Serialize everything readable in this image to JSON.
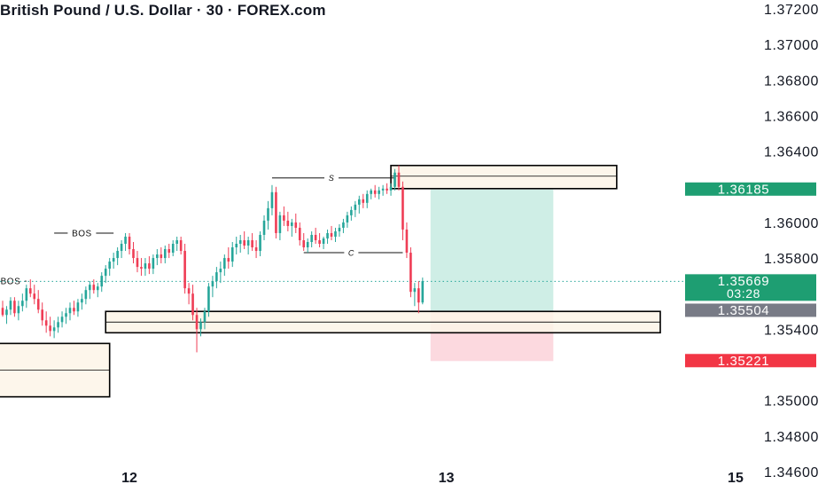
{
  "header": {
    "title": "British Pound / U.S. Dollar · 30 · FOREX.com"
  },
  "colors": {
    "up": "#26a69a",
    "down": "#ef3d55",
    "zone_fill": "#fdf5e8",
    "take_profit": "#cfeee6",
    "stop_loss": "#fcd9df",
    "last_price_line": "#26a69a",
    "axis_text": "#131722",
    "badge_green": "#1e9e72",
    "badge_gray": "#787b86",
    "badge_red": "#f23645"
  },
  "chart_data": {
    "type": "candlestick",
    "symbol": "British Pound / U.S. Dollar",
    "interval": "30",
    "source": "FOREX.com",
    "ylim": [
      1.3451,
      1.3725
    ],
    "y_ticks": [
      "1.37200",
      "1.37000",
      "1.36800",
      "1.36600",
      "1.36400",
      "1.36000",
      "1.35800",
      "1.35400",
      "1.35000",
      "1.34800",
      "1.34600"
    ],
    "x_ticks": [
      {
        "label": "12",
        "bar": 32
      },
      {
        "label": "13",
        "bar": 112
      },
      {
        "label": "15",
        "bar": 185
      }
    ],
    "candles": [
      [
        1.3552,
        1.3556,
        1.3547,
        1.3548
      ],
      [
        1.3548,
        1.3553,
        1.3543,
        1.3551
      ],
      [
        1.3551,
        1.3558,
        1.3548,
        1.3556
      ],
      [
        1.3556,
        1.3558,
        1.3547,
        1.3549
      ],
      [
        1.3549,
        1.3556,
        1.3545,
        1.3553
      ],
      [
        1.3553,
        1.356,
        1.355,
        1.3556
      ],
      [
        1.3556,
        1.3565,
        1.3552,
        1.3563
      ],
      [
        1.3563,
        1.3568,
        1.3558,
        1.356
      ],
      [
        1.356,
        1.3565,
        1.3554,
        1.3557
      ],
      [
        1.3557,
        1.3562,
        1.3549,
        1.3551
      ],
      [
        1.3551,
        1.3555,
        1.3542,
        1.3545
      ],
      [
        1.3545,
        1.355,
        1.3538,
        1.3542
      ],
      [
        1.3542,
        1.3547,
        1.3536,
        1.3539
      ],
      [
        1.3539,
        1.3545,
        1.3535,
        1.3541
      ],
      [
        1.3541,
        1.3547,
        1.3538,
        1.3544
      ],
      [
        1.3544,
        1.355,
        1.3541,
        1.3547
      ],
      [
        1.3547,
        1.3552,
        1.3543,
        1.3549
      ],
      [
        1.3549,
        1.3555,
        1.3545,
        1.3552
      ],
      [
        1.3552,
        1.3556,
        1.3548,
        1.355
      ],
      [
        1.355,
        1.3557,
        1.3547,
        1.3555
      ],
      [
        1.3555,
        1.356,
        1.3551,
        1.3557
      ],
      [
        1.3557,
        1.3564,
        1.3554,
        1.3562
      ],
      [
        1.3562,
        1.3567,
        1.3557,
        1.3565
      ],
      [
        1.3565,
        1.3568,
        1.356,
        1.3562
      ],
      [
        1.3562,
        1.3566,
        1.3558,
        1.3564
      ],
      [
        1.3564,
        1.3572,
        1.3561,
        1.357
      ],
      [
        1.357,
        1.3576,
        1.3566,
        1.3574
      ],
      [
        1.3574,
        1.358,
        1.357,
        1.3578
      ],
      [
        1.3578,
        1.3583,
        1.3574,
        1.358
      ],
      [
        1.358,
        1.3586,
        1.3576,
        1.3584
      ],
      [
        1.3584,
        1.359,
        1.358,
        1.3588
      ],
      [
        1.3588,
        1.3594,
        1.3584,
        1.3592
      ],
      [
        1.3592,
        1.3594,
        1.3582,
        1.3585
      ],
      [
        1.3585,
        1.3589,
        1.3577,
        1.358
      ],
      [
        1.358,
        1.3584,
        1.3572,
        1.3575
      ],
      [
        1.3575,
        1.358,
        1.357,
        1.3574
      ],
      [
        1.3574,
        1.358,
        1.357,
        1.3577
      ],
      [
        1.3577,
        1.3581,
        1.3571,
        1.3574
      ],
      [
        1.3574,
        1.3582,
        1.3571,
        1.358
      ],
      [
        1.358,
        1.3585,
        1.3576,
        1.3582
      ],
      [
        1.3582,
        1.3586,
        1.3577,
        1.358
      ],
      [
        1.358,
        1.3587,
        1.3577,
        1.3585
      ],
      [
        1.3585,
        1.3588,
        1.358,
        1.3583
      ],
      [
        1.3583,
        1.359,
        1.3581,
        1.3588
      ],
      [
        1.3588,
        1.3592,
        1.3584,
        1.359
      ],
      [
        1.359,
        1.3592,
        1.3582,
        1.3584
      ],
      [
        1.3584,
        1.3588,
        1.356,
        1.3563
      ],
      [
        1.3563,
        1.3566,
        1.3554,
        1.356
      ],
      [
        1.356,
        1.3565,
        1.3545,
        1.3548
      ],
      [
        1.3548,
        1.3552,
        1.3527,
        1.354
      ],
      [
        1.354,
        1.3546,
        1.3536,
        1.3544
      ],
      [
        1.3544,
        1.3552,
        1.354,
        1.355
      ],
      [
        1.355,
        1.3566,
        1.3547,
        1.3564
      ],
      [
        1.3564,
        1.357,
        1.3558,
        1.3567
      ],
      [
        1.3567,
        1.3575,
        1.3563,
        1.3572
      ],
      [
        1.3572,
        1.3578,
        1.3566,
        1.3574
      ],
      [
        1.3574,
        1.3582,
        1.357,
        1.358
      ],
      [
        1.358,
        1.3586,
        1.3574,
        1.3578
      ],
      [
        1.3578,
        1.3589,
        1.3575,
        1.3586
      ],
      [
        1.3586,
        1.3592,
        1.3582,
        1.3588
      ],
      [
        1.3588,
        1.3593,
        1.3583,
        1.359
      ],
      [
        1.359,
        1.3595,
        1.3585,
        1.3587
      ],
      [
        1.3587,
        1.3592,
        1.3582,
        1.359
      ],
      [
        1.359,
        1.3594,
        1.3584,
        1.3586
      ],
      [
        1.3586,
        1.359,
        1.358,
        1.3584
      ],
      [
        1.3584,
        1.3595,
        1.3581,
        1.3593
      ],
      [
        1.3593,
        1.3604,
        1.359,
        1.3601
      ],
      [
        1.3601,
        1.3612,
        1.3596,
        1.3608
      ],
      [
        1.3608,
        1.3621,
        1.3604,
        1.3617
      ],
      [
        1.3617,
        1.362,
        1.3591,
        1.3594
      ],
      [
        1.3594,
        1.3606,
        1.359,
        1.3604
      ],
      [
        1.3604,
        1.3609,
        1.3598,
        1.3601
      ],
      [
        1.3601,
        1.3606,
        1.3595,
        1.3598
      ],
      [
        1.3598,
        1.3602,
        1.3592,
        1.36
      ],
      [
        1.36,
        1.3605,
        1.3594,
        1.3597
      ],
      [
        1.3597,
        1.36,
        1.3587,
        1.359
      ],
      [
        1.359,
        1.3594,
        1.3584,
        1.3586
      ],
      [
        1.3586,
        1.3591,
        1.3583,
        1.3589
      ],
      [
        1.3589,
        1.3595,
        1.3586,
        1.3593
      ],
      [
        1.3593,
        1.3597,
        1.3588,
        1.359
      ],
      [
        1.359,
        1.3594,
        1.3586,
        1.3588
      ],
      [
        1.3588,
        1.3592,
        1.3585,
        1.3591
      ],
      [
        1.3591,
        1.3596,
        1.3588,
        1.3594
      ],
      [
        1.3594,
        1.3598,
        1.359,
        1.3592
      ],
      [
        1.3592,
        1.3597,
        1.3589,
        1.3595
      ],
      [
        1.3595,
        1.3599,
        1.3592,
        1.3597
      ],
      [
        1.3597,
        1.3602,
        1.3594,
        1.36
      ],
      [
        1.36,
        1.3606,
        1.3597,
        1.3604
      ],
      [
        1.3604,
        1.3609,
        1.3601,
        1.3607
      ],
      [
        1.3607,
        1.3612,
        1.3603,
        1.361
      ],
      [
        1.361,
        1.3615,
        1.3605,
        1.3613
      ],
      [
        1.3613,
        1.3616,
        1.3608,
        1.3611
      ],
      [
        1.3611,
        1.3618,
        1.3608,
        1.3616
      ],
      [
        1.3616,
        1.3619,
        1.3613,
        1.3618
      ],
      [
        1.3618,
        1.3621,
        1.3614,
        1.3616
      ],
      [
        1.3616,
        1.362,
        1.3613,
        1.3618
      ],
      [
        1.3618,
        1.3621,
        1.3615,
        1.3619
      ],
      [
        1.3619,
        1.3622,
        1.3616,
        1.3618
      ],
      [
        1.3618,
        1.3622,
        1.3615,
        1.362
      ],
      [
        1.362,
        1.363,
        1.3618,
        1.3628
      ],
      [
        1.3628,
        1.3632,
        1.3618,
        1.362
      ],
      [
        1.362,
        1.3623,
        1.359,
        1.3596
      ],
      [
        1.3596,
        1.36,
        1.358,
        1.3583
      ],
      [
        1.3583,
        1.3586,
        1.3558,
        1.3561
      ],
      [
        1.3561,
        1.3566,
        1.3553,
        1.3563
      ],
      [
        1.3563,
        1.3567,
        1.3549,
        1.3555
      ],
      [
        1.3555,
        1.3569,
        1.3554,
        1.3567
      ]
    ],
    "zones": [
      {
        "name": "demand-zone-lower",
        "bar_start": -1,
        "bar_end": 27,
        "top": 1.3532,
        "bottom": 1.3502,
        "midline": 1.3517
      },
      {
        "name": "demand-zone-middle",
        "bar_start": 26,
        "bar_end": 166,
        "top": 1.355,
        "bottom": 1.3538,
        "midline": 1.3544
      },
      {
        "name": "supply-zone-upper",
        "bar_start": 98,
        "bar_end": 155,
        "top": 1.3632,
        "bottom": 1.3619,
        "midline": 1.3626
      }
    ],
    "levels": [
      {
        "label": "BOS",
        "price": 1.3567,
        "bar_start": -1,
        "bar_end": 6,
        "label_bar": 2
      },
      {
        "label": "BOS",
        "price": 1.3594,
        "bar_start": 13,
        "bar_end": 28,
        "label_bar": 20
      },
      {
        "label": "S",
        "price": 1.3625,
        "bar_start": 68,
        "bar_end": 99,
        "label_bar": 83
      },
      {
        "label": "C",
        "price": 1.3583,
        "bar_start": 76,
        "bar_end": 101,
        "label_bar": 88
      }
    ],
    "position": {
      "bar_start": 108,
      "bar_end": 139,
      "entry": 1.35504,
      "target": 1.36185,
      "stop": 1.35221
    },
    "last_price": 1.35669,
    "price_badges": [
      {
        "name": "target-price-badge",
        "label": "1.36185",
        "price": 1.36185,
        "kind": "green"
      },
      {
        "name": "last-price-badge",
        "label": "1.35669",
        "sublabel": "03:28",
        "price": 1.35669,
        "kind": "green"
      },
      {
        "name": "entry-price-badge",
        "label": "1.35504",
        "price": 1.35504,
        "kind": "gray"
      },
      {
        "name": "stop-price-badge",
        "label": "1.35221",
        "price": 1.35221,
        "kind": "red"
      }
    ]
  }
}
